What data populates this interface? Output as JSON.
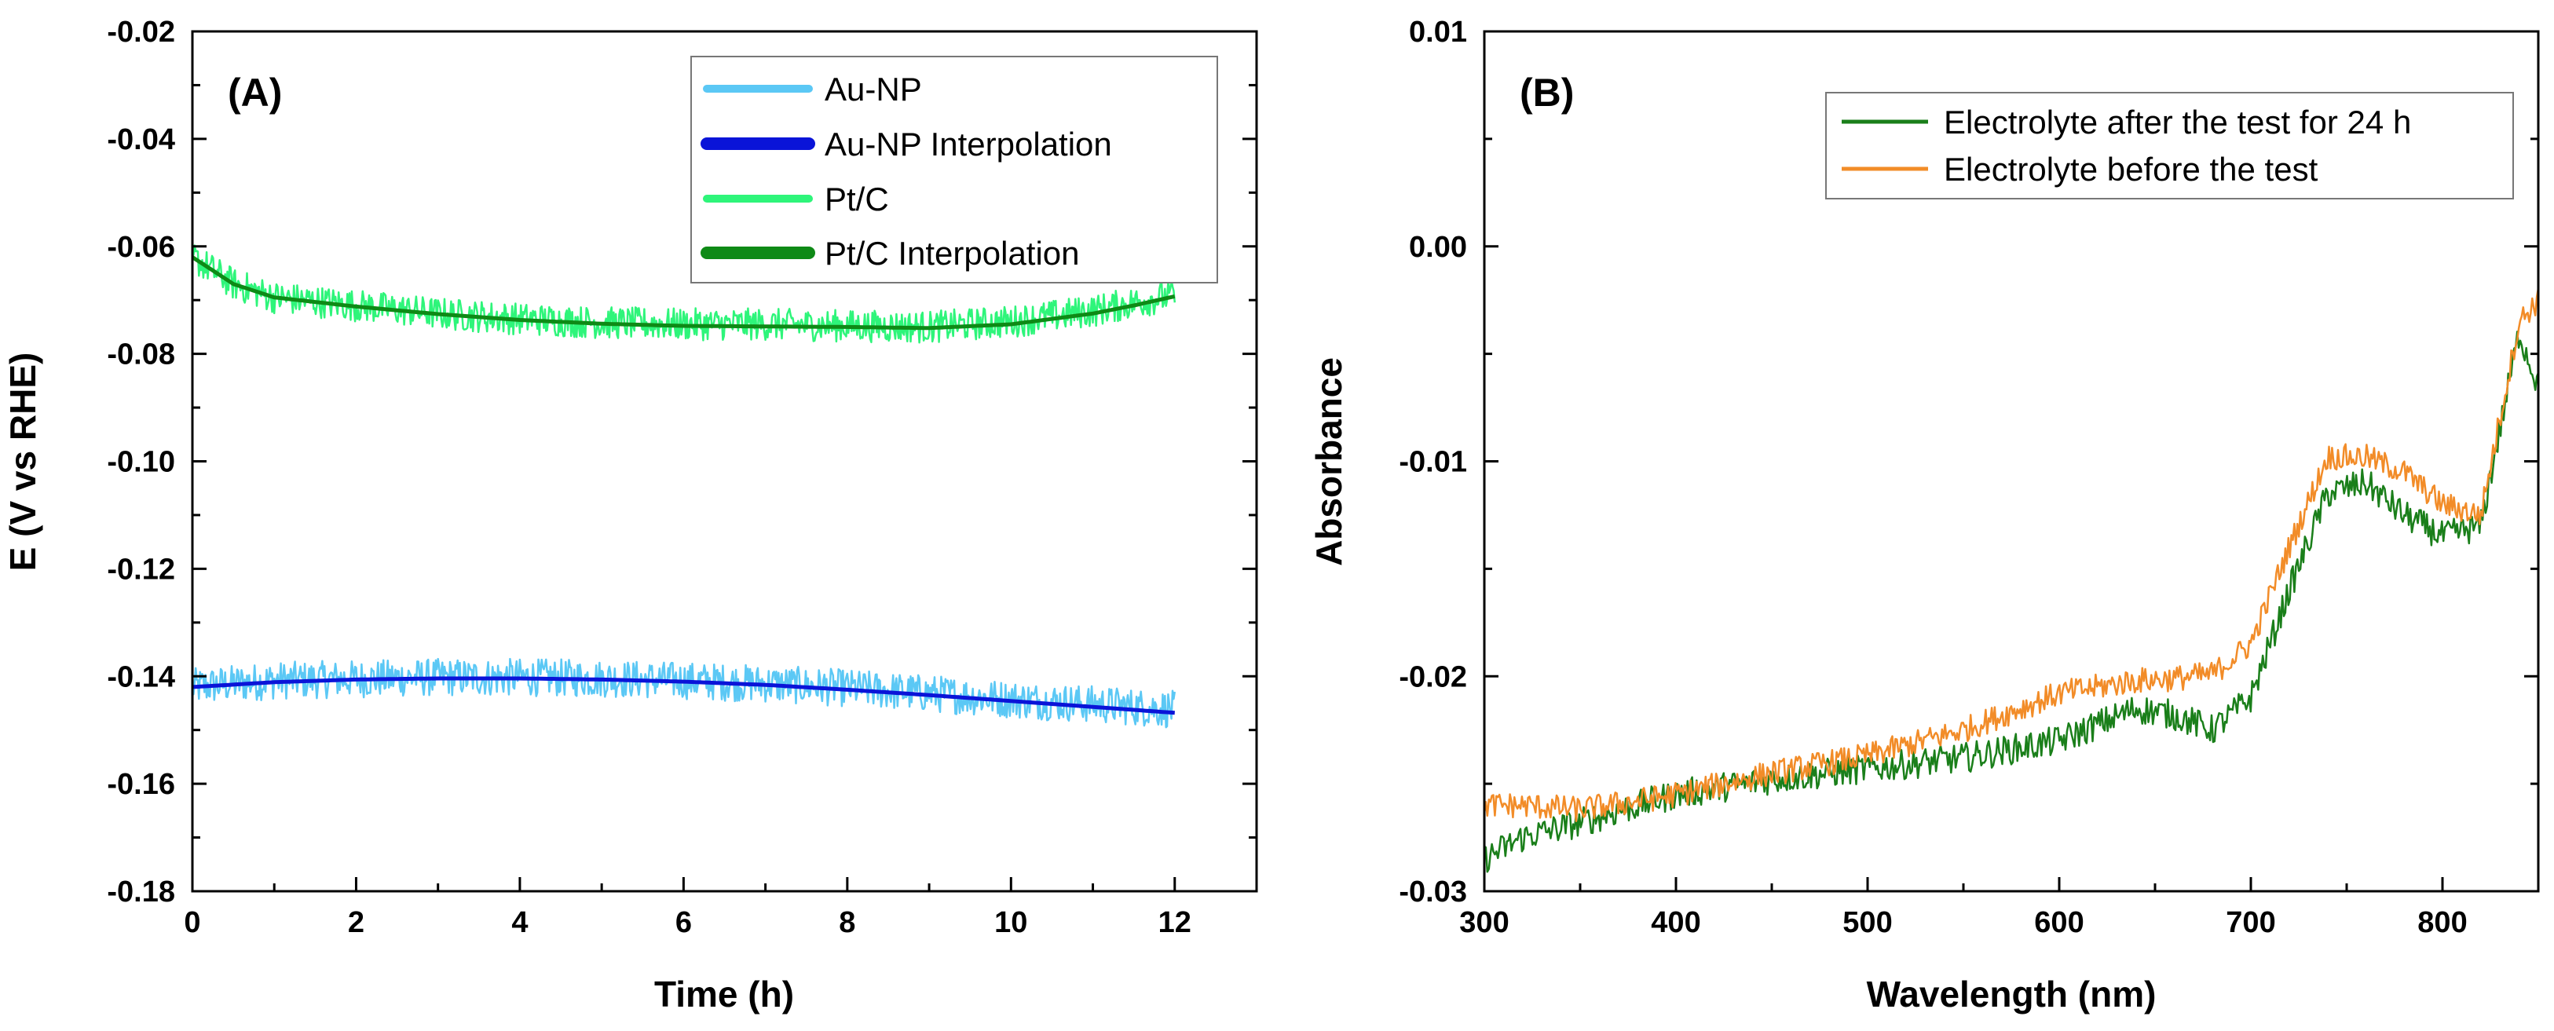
{
  "chart_data": [
    {
      "id": "A",
      "type": "line",
      "panel_label": "(A)",
      "xlabel": "Time (h)",
      "ylabel": "E (V vs RHE)",
      "xlim": [
        0,
        13
      ],
      "ylim": [
        -0.18,
        -0.02
      ],
      "xticks": [
        0,
        2,
        4,
        6,
        8,
        10,
        12
      ],
      "xtick_labels": [
        "0",
        "2",
        "4",
        "6",
        "8",
        "10",
        "12"
      ],
      "yticks": [
        -0.18,
        -0.16,
        -0.14,
        -0.12,
        -0.1,
        -0.08,
        -0.06,
        -0.04,
        -0.02
      ],
      "ytick_labels": [
        "-0.18",
        "-0.16",
        "-0.14",
        "-0.12",
        "-0.10",
        "-0.08",
        "-0.06",
        "-0.04",
        "-0.02"
      ],
      "legend_position": "top-right",
      "series": [
        {
          "name": "Au-NP",
          "color": "#5BC8F5",
          "style": "noisy",
          "noise": 0.0035,
          "x": [
            0,
            1,
            2,
            3,
            4,
            5,
            6,
            7,
            8,
            9,
            10,
            11,
            12
          ],
          "y": [
            -0.142,
            -0.1408,
            -0.1405,
            -0.1402,
            -0.1402,
            -0.1404,
            -0.1408,
            -0.1414,
            -0.1422,
            -0.1432,
            -0.1443,
            -0.1452,
            -0.1462
          ]
        },
        {
          "name": "Au-NP Interpolation",
          "color": "#0A14D8",
          "style": "smooth",
          "x": [
            0,
            1,
            2,
            3,
            4,
            5,
            6,
            7,
            8,
            9,
            10,
            11,
            12
          ],
          "y": [
            -0.142,
            -0.1411,
            -0.1406,
            -0.1404,
            -0.1404,
            -0.1406,
            -0.141,
            -0.1416,
            -0.1425,
            -0.1435,
            -0.1446,
            -0.1457,
            -0.1468
          ]
        },
        {
          "name": "Pt/C",
          "color": "#2EF57A",
          "style": "noisy",
          "noise": 0.003,
          "x": [
            0,
            0.5,
            1,
            2,
            3,
            4,
            5,
            6,
            7,
            8,
            9,
            10,
            11,
            11.5,
            12
          ],
          "y": [
            -0.062,
            -0.067,
            -0.0695,
            -0.071,
            -0.0725,
            -0.0735,
            -0.0742,
            -0.0745,
            -0.0745,
            -0.0748,
            -0.075,
            -0.074,
            -0.072,
            -0.0705,
            -0.069
          ]
        },
        {
          "name": "Pt/C Interpolation",
          "color": "#0E8A16",
          "style": "smooth",
          "x": [
            0,
            0.5,
            1,
            2,
            3,
            4,
            5,
            6,
            7,
            8,
            9,
            10,
            11,
            11.5,
            12
          ],
          "y": [
            -0.062,
            -0.067,
            -0.0695,
            -0.0712,
            -0.0726,
            -0.0737,
            -0.0744,
            -0.0748,
            -0.0749,
            -0.075,
            -0.0752,
            -0.0745,
            -0.0725,
            -0.071,
            -0.0693
          ]
        }
      ]
    },
    {
      "id": "B",
      "type": "line",
      "panel_label": "(B)",
      "xlabel": "Wavelength (nm)",
      "ylabel": "Absorbance",
      "xlim": [
        300,
        850
      ],
      "ylim": [
        -0.03,
        0.01
      ],
      "xticks": [
        300,
        400,
        500,
        600,
        700,
        800
      ],
      "xtick_labels": [
        "300",
        "400",
        "500",
        "600",
        "700",
        "800"
      ],
      "yticks": [
        -0.03,
        -0.02,
        -0.01,
        0.0,
        0.01
      ],
      "ytick_labels": [
        "-0.03",
        "-0.02",
        "-0.01",
        "0.00",
        "0.01"
      ],
      "legend_position": "top-right",
      "series": [
        {
          "name": "Electrolyte after the test for 24 h",
          "color": "#1A7F1A",
          "noise": 0.0007,
          "x": [
            300,
            320,
            350,
            380,
            400,
            450,
            500,
            550,
            600,
            640,
            660,
            680,
            700,
            720,
            740,
            760,
            780,
            800,
            820,
            840,
            850
          ],
          "y": [
            -0.0285,
            -0.0275,
            -0.0268,
            -0.026,
            -0.0255,
            -0.0248,
            -0.0243,
            -0.0238,
            -0.023,
            -0.0215,
            -0.0218,
            -0.0225,
            -0.021,
            -0.016,
            -0.0115,
            -0.011,
            -0.0125,
            -0.0135,
            -0.013,
            -0.004,
            -0.0065
          ]
        },
        {
          "name": "Electrolyte before the test",
          "color": "#F28C28",
          "noise": 0.0006,
          "x": [
            300,
            320,
            350,
            380,
            400,
            450,
            500,
            550,
            600,
            640,
            660,
            680,
            700,
            720,
            740,
            760,
            780,
            800,
            820,
            840,
            850
          ],
          "y": [
            -0.026,
            -0.026,
            -0.0262,
            -0.0258,
            -0.0255,
            -0.0245,
            -0.0237,
            -0.0225,
            -0.0208,
            -0.0202,
            -0.0201,
            -0.0199,
            -0.0185,
            -0.014,
            -0.0098,
            -0.0098,
            -0.0105,
            -0.012,
            -0.0125,
            -0.0035,
            -0.0025
          ]
        }
      ]
    }
  ]
}
